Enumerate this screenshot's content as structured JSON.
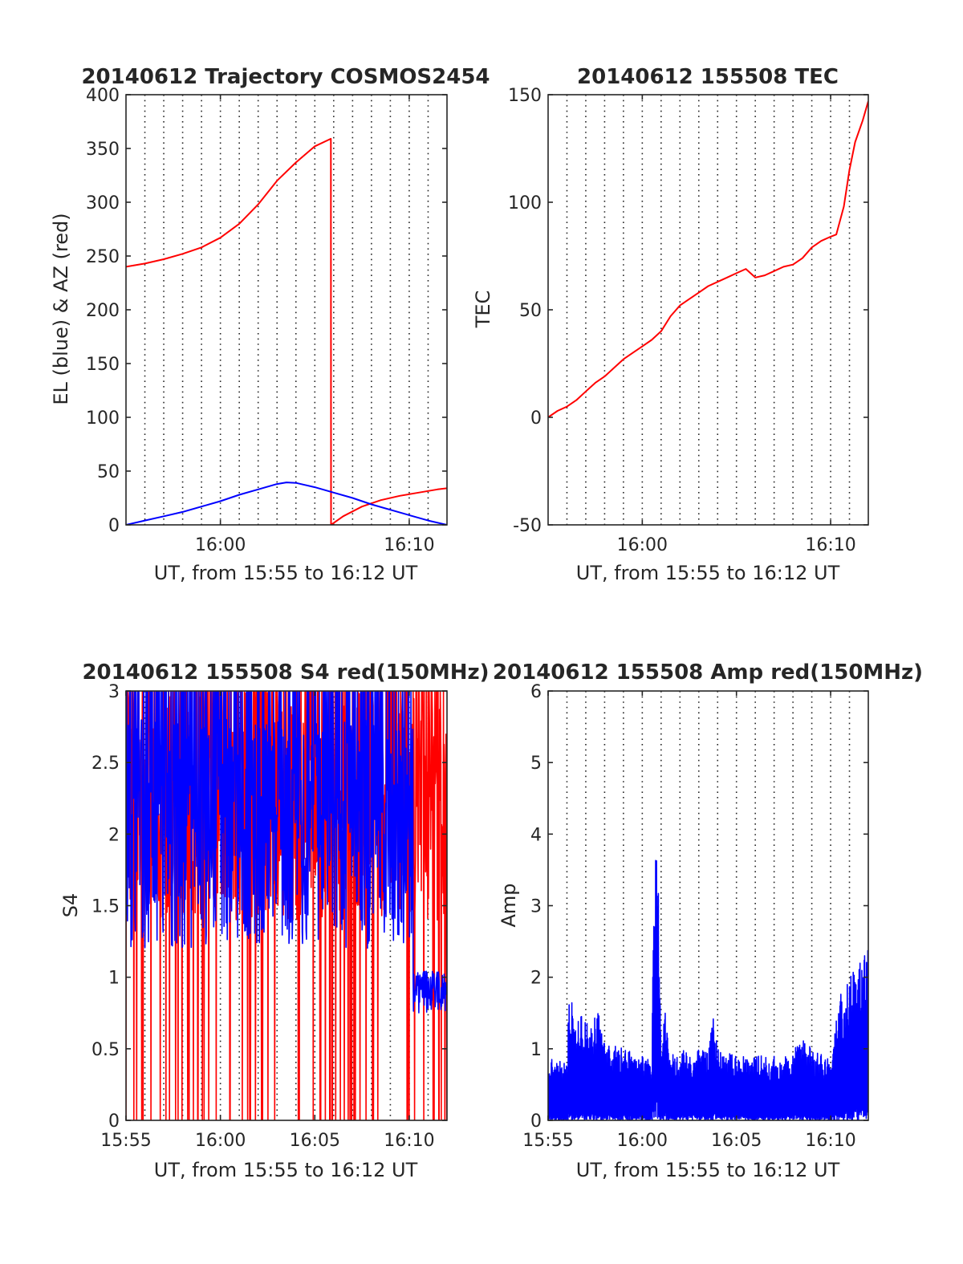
{
  "chart_data": [
    {
      "type": "line",
      "title": "20140612 Trajectory COSMOS2454",
      "xlabel": "UT, from 15:55 to 16:12 UT",
      "ylabel": "EL (blue) & AZ (red)",
      "xlim": [
        0,
        17
      ],
      "ylim": [
        0,
        400
      ],
      "yticks": [
        "0",
        "50",
        "100",
        "150",
        "200",
        "250",
        "300",
        "350",
        "400"
      ],
      "xticks": [
        {
          "x": 5,
          "label": "16:00"
        },
        {
          "x": 15,
          "label": "16:10"
        }
      ],
      "grid": "vertical dotted",
      "series": [
        {
          "color": "#ff0000",
          "x": [
            0,
            1,
            2,
            3,
            4,
            5,
            6,
            7,
            8,
            9,
            10,
            10.85,
            10.86,
            11.5,
            12.5,
            13.5,
            14.5,
            15.5,
            16.5,
            17
          ],
          "values": [
            240,
            243,
            247,
            252,
            258,
            267,
            280,
            298,
            320,
            337,
            352,
            359,
            0,
            8,
            17,
            23,
            27,
            30,
            33,
            34
          ]
        },
        {
          "color": "#0000ff",
          "x": [
            0,
            1,
            2,
            3,
            4,
            5,
            6,
            7,
            8,
            8.5,
            9,
            10,
            11,
            12,
            13,
            14,
            15,
            16,
            17
          ],
          "values": [
            0,
            4,
            8,
            12,
            17,
            22,
            28,
            33,
            38,
            39.5,
            39,
            35,
            30,
            25,
            19,
            14,
            9,
            4,
            0
          ]
        }
      ]
    },
    {
      "type": "line",
      "title": "20140612 155508 TEC",
      "xlabel": "UT, from 15:55 to 16:12 UT",
      "ylabel": "TEC",
      "xlim": [
        0,
        17
      ],
      "ylim": [
        -50,
        150
      ],
      "yticks": [
        "-50",
        "0",
        "50",
        "100",
        "150"
      ],
      "xticks": [
        {
          "x": 5,
          "label": "16:00"
        },
        {
          "x": 15,
          "label": "16:10"
        }
      ],
      "grid": "vertical dotted",
      "series": [
        {
          "color": "#ff0000",
          "x": [
            0,
            0.5,
            1,
            1.5,
            2,
            2.5,
            3,
            3.5,
            4,
            4.5,
            5,
            5.5,
            6,
            6.5,
            7,
            7.5,
            8,
            8.5,
            9,
            9.5,
            10,
            10.5,
            11,
            11.5,
            12,
            12.5,
            13,
            13.5,
            14,
            14.5,
            15,
            15.3,
            15.7,
            16,
            16.3,
            16.7,
            17
          ],
          "values": [
            0,
            3,
            5,
            8,
            12,
            16,
            19,
            23,
            27,
            30,
            33,
            36,
            40,
            47,
            52,
            55,
            58,
            61,
            63,
            65,
            67,
            69,
            65,
            66,
            68,
            70,
            71,
            74,
            79,
            82,
            84,
            85,
            98,
            115,
            128,
            138,
            147
          ]
        }
      ]
    },
    {
      "type": "line",
      "title": "20140612 155508 S4 red(150MHz)",
      "xlabel": "UT, from 15:55 to 16:12 UT",
      "ylabel": "S4",
      "xlim": [
        0,
        17
      ],
      "ylim": [
        0,
        3
      ],
      "yticks": [
        "0",
        "0.5",
        "1",
        "1.5",
        "2",
        "2.5",
        "3"
      ],
      "xticks": [
        {
          "x": 0,
          "label": "15:55"
        },
        {
          "x": 5,
          "label": "16:00"
        },
        {
          "x": 10,
          "label": "16:05"
        },
        {
          "x": 15,
          "label": "16:10"
        }
      ],
      "grid": "vertical dotted",
      "series": [
        {
          "color": "#ff0000",
          "kind": "noise",
          "low": 0,
          "high": 3,
          "mid": 2.2,
          "seed": 7
        },
        {
          "color": "#0000ff",
          "kind": "noise",
          "low": 0.7,
          "high": 3,
          "mid": 2.0,
          "seed": 13
        }
      ]
    },
    {
      "type": "line",
      "title": "20140612 155508 Amp red(150MHz)",
      "xlabel": "UT, from 15:55 to 16:12 UT",
      "ylabel": "Amp",
      "xlim": [
        0,
        17
      ],
      "ylim": [
        0,
        6
      ],
      "yticks": [
        "0",
        "1",
        "2",
        "3",
        "4",
        "5",
        "6"
      ],
      "xticks": [
        {
          "x": 0,
          "label": "15:55"
        },
        {
          "x": 5,
          "label": "16:00"
        },
        {
          "x": 10,
          "label": "16:05"
        },
        {
          "x": 15,
          "label": "16:10"
        }
      ],
      "grid": "vertical dotted",
      "series": [
        {
          "color": "#0000ff",
          "kind": "envelope",
          "env_x": [
            0,
            1,
            1.1,
            2,
            2.4,
            2.5,
            3,
            5,
            5.5,
            5.7,
            5.8,
            6,
            6.3,
            6.4,
            7,
            8.5,
            8.7,
            9,
            10,
            13,
            13.3,
            14,
            14.8,
            15,
            15.5,
            16,
            16.5,
            17
          ],
          "env_hi": [
            0.9,
            0.8,
            1.7,
            1.4,
            1.3,
            1.7,
            1.1,
            0.9,
            0.9,
            4.6,
            4.2,
            1.0,
            1.9,
            0.9,
            1.0,
            1.0,
            1.6,
            1.0,
            0.9,
            0.9,
            1.2,
            1.0,
            0.9,
            0.8,
            1.8,
            2.0,
            2.2,
            2.4
          ],
          "seed": 21
        }
      ]
    }
  ]
}
